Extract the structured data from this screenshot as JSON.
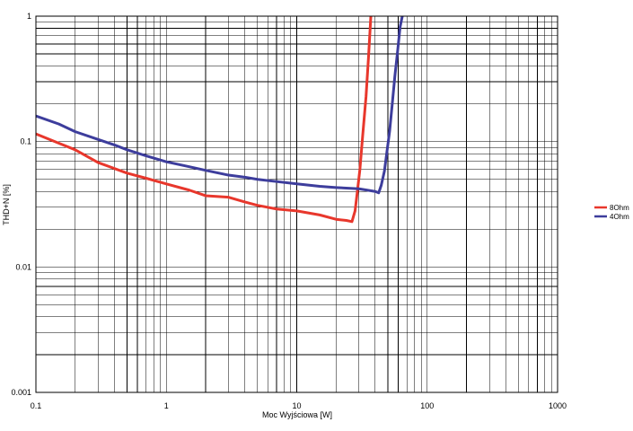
{
  "chart_data": {
    "type": "line",
    "scale": {
      "x": "log",
      "y": "log"
    },
    "xlim": [
      0.1,
      1000
    ],
    "ylim": [
      0.001,
      1
    ],
    "xlabel": "Moc Wyjściowa [W]",
    "ylabel": "THD+N [%]",
    "x_ticks": [
      "0.1",
      "1",
      "10",
      "100",
      "1000"
    ],
    "y_ticks": [
      "0.001",
      "0.01",
      "0.1",
      "1"
    ],
    "grid": true,
    "legend": "right",
    "series": [
      {
        "name": "8Ohm",
        "color": "#e8372c",
        "x": [
          0.1,
          0.15,
          0.2,
          0.3,
          0.4,
          0.5,
          0.7,
          1,
          1.5,
          2,
          3,
          4,
          5,
          7,
          10,
          15,
          20,
          24,
          26.5,
          28,
          29,
          30.5,
          32,
          34,
          35.5,
          37
        ],
        "y": [
          0.115,
          0.097,
          0.086,
          0.068,
          0.061,
          0.056,
          0.051,
          0.046,
          0.041,
          0.037,
          0.036,
          0.033,
          0.031,
          0.029,
          0.028,
          0.026,
          0.024,
          0.0235,
          0.023,
          0.028,
          0.038,
          0.06,
          0.11,
          0.23,
          0.47,
          1
        ]
      },
      {
        "name": "4Ohm",
        "color": "#3d3d9c",
        "x": [
          0.1,
          0.15,
          0.2,
          0.3,
          0.4,
          0.5,
          0.7,
          1,
          1.5,
          2,
          3,
          4,
          5,
          7,
          10,
          15,
          20,
          30,
          40,
          42.5,
          44.5,
          47,
          49,
          51.5,
          54,
          56.5,
          59.5,
          62,
          64.5
        ],
        "y": [
          0.16,
          0.138,
          0.12,
          0.104,
          0.094,
          0.086,
          0.077,
          0.069,
          0.063,
          0.059,
          0.054,
          0.052,
          0.05,
          0.048,
          0.046,
          0.044,
          0.043,
          0.042,
          0.04,
          0.039,
          0.045,
          0.058,
          0.081,
          0.12,
          0.2,
          0.33,
          0.54,
          0.82,
          1
        ]
      }
    ]
  }
}
